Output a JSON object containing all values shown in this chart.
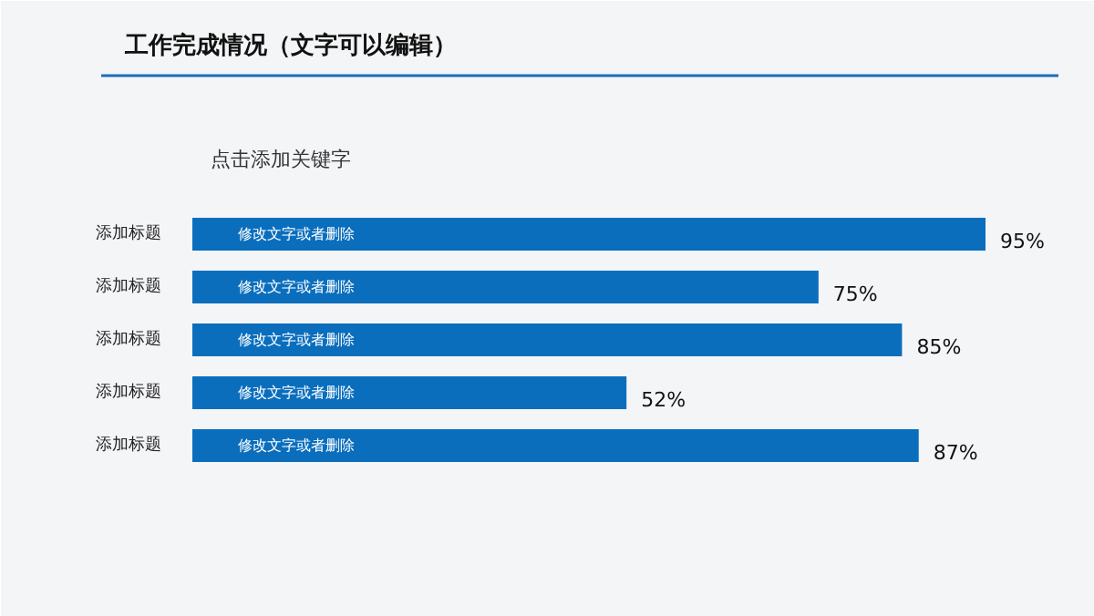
{
  "chart_data": {
    "type": "bar",
    "orientation": "horizontal",
    "title": "工作完成情况（文字可以编辑）",
    "subtitle": "点击添加关键字",
    "categories": [
      "添加标题",
      "添加标题",
      "添加标题",
      "添加标题",
      "添加标题"
    ],
    "values": [
      95,
      75,
      85,
      52,
      87
    ],
    "color": "#0a6ebd",
    "value_labels": [
      "95%",
      "75%",
      "85%",
      "52%",
      "87%"
    ],
    "annotations": [
      "修改文字或者删除",
      "修改文字或者删除",
      "修改文字或者删除",
      "修改文字或者删除",
      "修改文字或者删除"
    ]
  }
}
